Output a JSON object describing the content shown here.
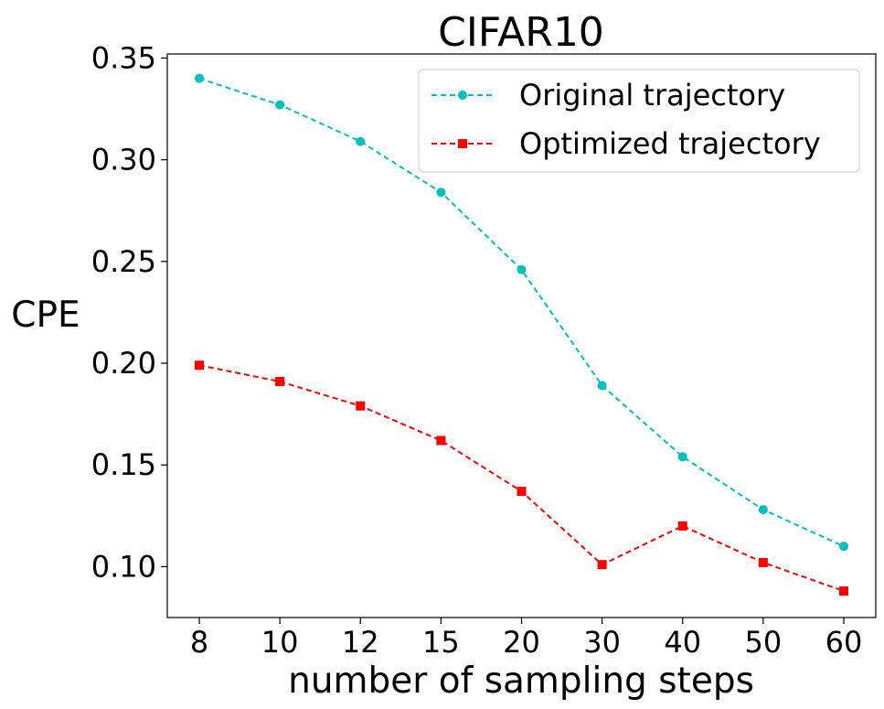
{
  "chart_data": {
    "type": "line",
    "title": "CIFAR10",
    "xlabel": "number of sampling steps",
    "ylabel": "CPE",
    "categories": [
      "8",
      "10",
      "12",
      "15",
      "20",
      "30",
      "40",
      "50",
      "60"
    ],
    "yticks": [
      "0.10",
      "0.15",
      "0.20",
      "0.25",
      "0.30",
      "0.35"
    ],
    "ylim": [
      0.075,
      0.352
    ],
    "grid": false,
    "legend_position": "top-right",
    "series": [
      {
        "name": "Original trajectory",
        "color": "#00bfbf",
        "marker": "circle",
        "linestyle": "dashed",
        "values": [
          0.34,
          0.327,
          0.309,
          0.284,
          0.246,
          0.189,
          0.154,
          0.128,
          0.11
        ]
      },
      {
        "name": "Optimized trajectory",
        "color": "#ff0000",
        "marker": "square",
        "linestyle": "dashed",
        "values": [
          0.199,
          0.191,
          0.179,
          0.162,
          0.137,
          0.101,
          0.12,
          0.102,
          0.088
        ]
      }
    ]
  }
}
